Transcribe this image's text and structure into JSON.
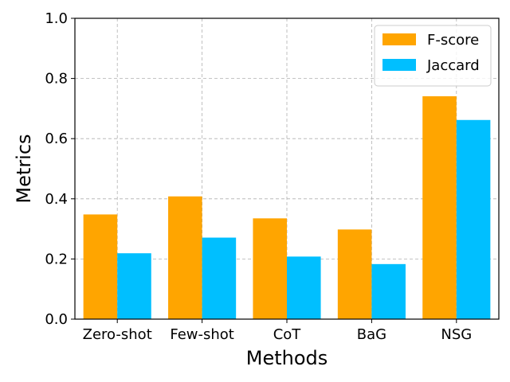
{
  "chart_data": {
    "type": "bar",
    "title": "",
    "xlabel": "Methods",
    "ylabel": "Metrics",
    "categories": [
      "Zero-shot",
      "Few-shot",
      "CoT",
      "BaG",
      "NSG"
    ],
    "series": [
      {
        "name": "F-score",
        "color": "#ffa500",
        "values": [
          0.348,
          0.408,
          0.335,
          0.298,
          0.741
        ]
      },
      {
        "name": "Jaccard",
        "color": "#00bfff",
        "values": [
          0.219,
          0.271,
          0.208,
          0.183,
          0.662
        ]
      }
    ],
    "ylim": [
      0,
      1.0
    ],
    "yticks": [
      "0.0",
      "0.2",
      "0.4",
      "0.6",
      "0.8",
      "1.0"
    ],
    "grid": true,
    "legend_position": "top-right"
  }
}
